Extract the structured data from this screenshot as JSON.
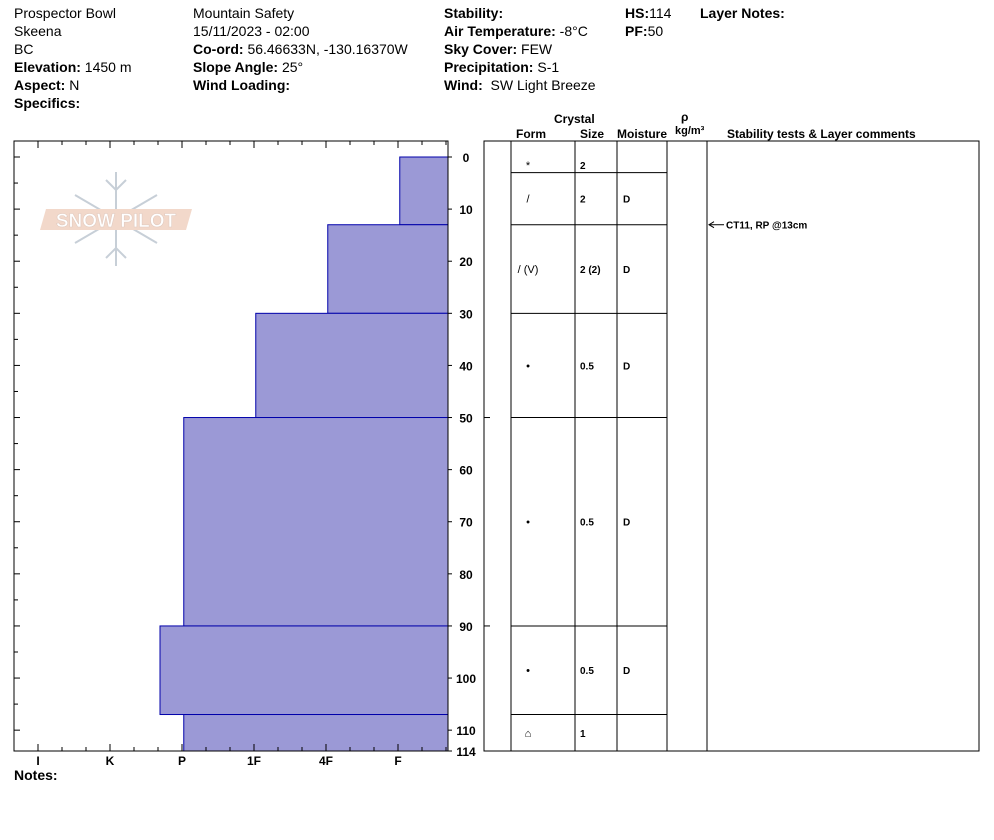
{
  "site": {
    "location": "Prospector Bowl",
    "region": "Skeena",
    "state": "BC",
    "elevation_label": "Elevation:",
    "elevation": "1450 m",
    "aspect_label": "Aspect:",
    "aspect": "N",
    "specifics_label": "Specifics:"
  },
  "obs": {
    "organization": "Mountain Safety",
    "datetime": "15/11/2023 - 02:00",
    "coord_label": "Co-ord:",
    "coord": "56.46633N, -130.16370W",
    "slope_label": "Slope Angle:",
    "slope": "25°",
    "wind_loading_label": "Wind Loading:"
  },
  "conditions": {
    "stability_label": "Stability:",
    "air_temp_label": "Air Temperature:",
    "air_temp": "-8°C",
    "sky_label": "Sky Cover:",
    "sky": "FEW",
    "precip_label": "Precipitation:",
    "precip": "S-1",
    "wind_label": "Wind:",
    "wind": "SW Light Breeze"
  },
  "summary": {
    "hs_label": "HS:",
    "hs": "114",
    "pf_label": "PF:",
    "pf": "50",
    "layer_notes_label": "Layer Notes:"
  },
  "table_headers": {
    "crystal": "Crystal",
    "form": "Form",
    "size": "Size",
    "moisture": "Moisture",
    "rho": "ρ",
    "density_unit": "kg/m³",
    "stability": "Stability tests & Layer comments"
  },
  "notes_label": "Notes:",
  "logo_text": "SNOW PILOT",
  "colors": {
    "layer_fill": "#9b99d6",
    "layer_stroke": "#0000aa"
  },
  "chart_data": {
    "type": "bar",
    "depth_axis": {
      "min": 0,
      "max": 114,
      "ticks": [
        0,
        10,
        20,
        30,
        40,
        50,
        60,
        70,
        80,
        90,
        100,
        110,
        114
      ]
    },
    "hardness_scale": [
      "I",
      "K",
      "P",
      "1F",
      "4F",
      "F"
    ],
    "layers": [
      {
        "top": 0,
        "bottom": 13,
        "hardness": "F-",
        "hardness_value": 0.67,
        "form": "*",
        "size": "2",
        "moisture": "D"
      },
      {
        "top": 13,
        "bottom": 30,
        "hardness": "4F-",
        "hardness_value": 1.67,
        "form": "/",
        "size": "2",
        "moisture": "D"
      },
      {
        "top": 30,
        "bottom": 50,
        "hardness": "1F-",
        "hardness_value": 2.67,
        "form": "/ (V)",
        "size": "2 (2)",
        "moisture": "D"
      },
      {
        "top": 50,
        "bottom": 90,
        "hardness": "P",
        "hardness_value": 3.67,
        "form": "•",
        "size": "0.5",
        "moisture": "D"
      },
      {
        "top": 90,
        "bottom": 107,
        "hardness": "P+",
        "hardness_value": 4.0,
        "form": "•",
        "size": "0.5",
        "moisture": "D"
      },
      {
        "top": 107,
        "bottom": 114,
        "hardness": "P",
        "hardness_value": 3.67,
        "form": "crust",
        "size": "1",
        "moisture": ""
      }
    ],
    "table_rows": [
      {
        "top": 0,
        "bottom": 3,
        "form": "*",
        "size": "2",
        "moisture": ""
      },
      {
        "top": 3,
        "bottom": 13,
        "form": "/",
        "size": "2",
        "moisture": "D"
      },
      {
        "top": 13,
        "bottom": 30,
        "form": "/ (V)",
        "size": "2 (2)",
        "moisture": "D"
      },
      {
        "top": 30,
        "bottom": 50,
        "form": "•",
        "size": "0.5",
        "moisture": "D"
      },
      {
        "top": 50,
        "bottom": 90,
        "form": "•",
        "size": "0.5",
        "moisture": "D"
      },
      {
        "top": 90,
        "bottom": 107,
        "form": "•",
        "size": "0.5",
        "moisture": "D"
      },
      {
        "top": 107,
        "bottom": 114,
        "form": "⌂",
        "size": "1",
        "moisture": ""
      }
    ],
    "stability_tests": [
      {
        "depth": 13,
        "text": "CT11, RP @13cm"
      }
    ]
  }
}
